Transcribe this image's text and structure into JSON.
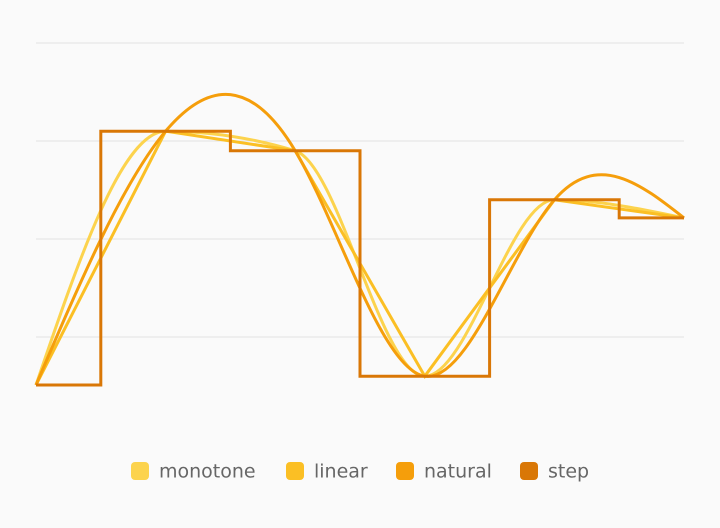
{
  "chart_data": {
    "type": "line",
    "ylim": [
      0,
      80
    ],
    "yticks": [
      20,
      40,
      60,
      80
    ],
    "grid": true,
    "series": [
      {
        "name": "monotone",
        "color": "#fcd34d",
        "curve": "monotone",
        "values": [
          10.2,
          62,
          58,
          12,
          48,
          44.3
        ]
      },
      {
        "name": "linear",
        "color": "#fbbf24",
        "curve": "linear",
        "values": [
          10.2,
          62,
          58,
          12,
          48,
          44.3
        ]
      },
      {
        "name": "natural",
        "color": "#f59e0b",
        "curve": "natural",
        "values": [
          10.2,
          62,
          58,
          12,
          48,
          44.3
        ]
      },
      {
        "name": "step",
        "color": "#d97706",
        "curve": "step",
        "values": [
          10.2,
          62,
          58,
          12,
          48,
          44.3
        ]
      }
    ]
  }
}
